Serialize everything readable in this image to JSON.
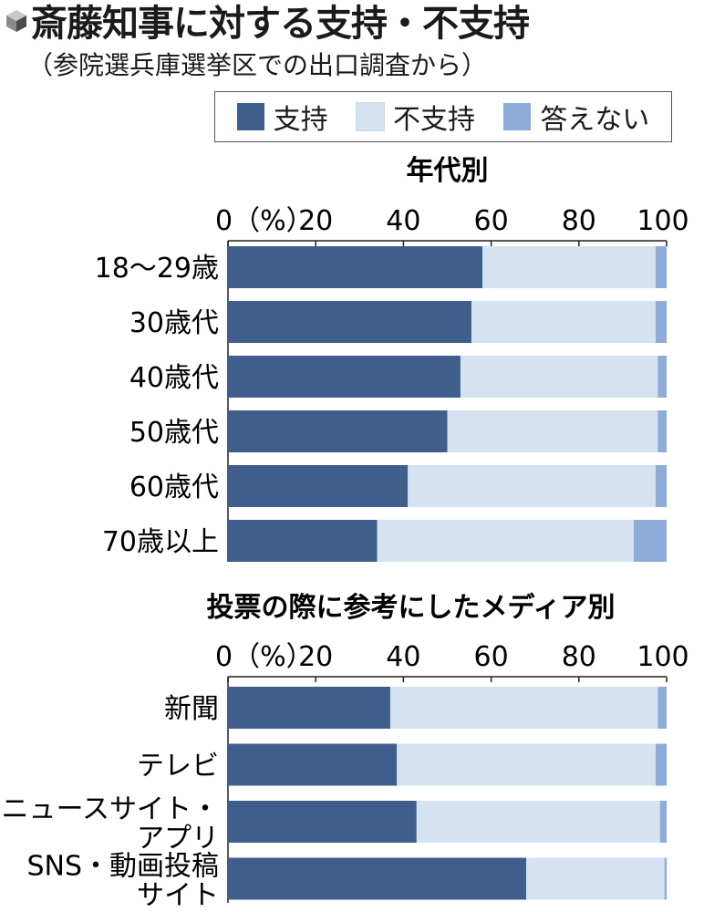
{
  "title": "斎藤知事に対する支持・不支持",
  "subtitle": "（参院選兵庫選挙区での出口調査から）",
  "colors": {
    "support": "#3f5e8c",
    "nonsupport": "#d5e3f0",
    "no_answer": "#8fabd9"
  },
  "legend": [
    {
      "label": "支持",
      "color": "#3f5e8c"
    },
    {
      "label": "不支持",
      "color": "#d5e3f0"
    },
    {
      "label": "答えない",
      "color": "#8fabd9"
    }
  ],
  "chart_data": [
    {
      "type": "bar",
      "orientation": "horizontal",
      "stacked": true,
      "title": "年代別",
      "ticks": [
        "0（%）",
        "20",
        "40",
        "60",
        "80",
        "100"
      ],
      "xlim": [
        0,
        100
      ],
      "categories": [
        "18〜29歳",
        "30歳代",
        "40歳代",
        "50歳代",
        "60歳代",
        "70歳以上"
      ],
      "series": [
        {
          "name": "支持",
          "values": [
            58,
            55.5,
            53,
            50,
            41,
            34
          ]
        },
        {
          "name": "不支持",
          "values": [
            39.5,
            42,
            45,
            48,
            56.5,
            58.5
          ]
        },
        {
          "name": "答えない",
          "values": [
            2.5,
            2.5,
            2,
            2,
            2.5,
            7.5
          ]
        }
      ]
    },
    {
      "type": "bar",
      "orientation": "horizontal",
      "stacked": true,
      "title": "投票の際に参考にしたメディア別",
      "ticks": [
        "0（%）",
        "20",
        "40",
        "60",
        "80",
        "100"
      ],
      "xlim": [
        0,
        100
      ],
      "categories": [
        "新聞",
        "テレビ",
        "ニュースサイト・アプリ",
        "SNS・動画投稿サイト"
      ],
      "category_lines": [
        [
          "新聞"
        ],
        [
          "テレビ"
        ],
        [
          "ニュースサイト・",
          "アプリ"
        ],
        [
          "SNS・動画投稿",
          "サイト"
        ]
      ],
      "series": [
        {
          "name": "支持",
          "values": [
            37,
            38.5,
            43,
            68
          ]
        },
        {
          "name": "不支持",
          "values": [
            61,
            59,
            55.5,
            31.5
          ]
        },
        {
          "name": "答えない",
          "values": [
            2,
            2.5,
            1.5,
            0.5
          ]
        }
      ]
    }
  ]
}
